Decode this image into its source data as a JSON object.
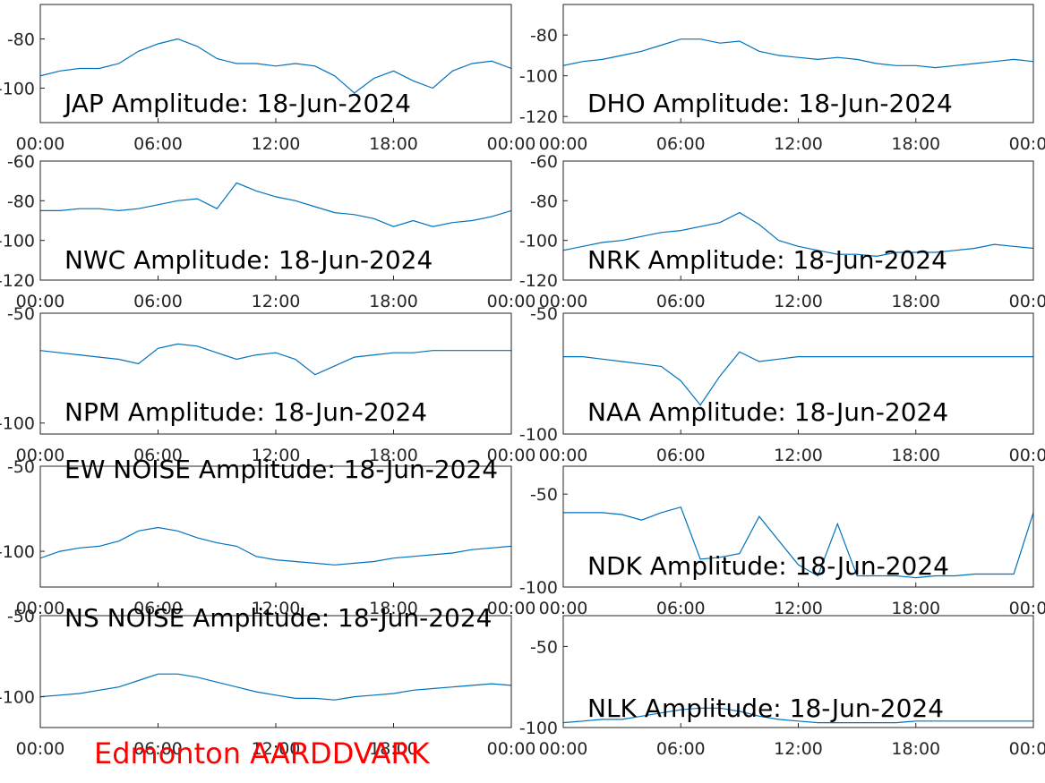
{
  "chart_data": [
    {
      "type": "line",
      "title": "JAP Amplitude: 18-Jun-2024",
      "color": "#0072bd",
      "x": [
        0,
        1,
        2,
        3,
        4,
        5,
        6,
        7,
        8,
        9,
        10,
        11,
        12,
        13,
        14,
        15,
        16,
        17,
        18,
        19,
        20,
        21,
        22,
        23,
        24
      ],
      "values": [
        -95,
        -93,
        -92,
        -92,
        -90,
        -85,
        -82,
        -80,
        -83,
        -88,
        -90,
        -90,
        -91,
        -90,
        -91,
        -95,
        -102,
        -96,
        -93,
        -97,
        -100,
        -93,
        -90,
        -89,
        -92
      ],
      "xlim": [
        0,
        24
      ],
      "xticks": [
        {
          "value": 0,
          "label": "00:00"
        },
        {
          "value": 6,
          "label": "06:00"
        },
        {
          "value": 12,
          "label": "12:00"
        },
        {
          "value": 18,
          "label": "18:00"
        },
        {
          "value": 24,
          "label": "00:00"
        }
      ],
      "ylim": [
        -114,
        -66
      ],
      "yticks": [
        -100,
        -80
      ]
    },
    {
      "type": "line",
      "title": "DHO Amplitude: 18-Jun-2024",
      "color": "#0072bd",
      "x": [
        0,
        1,
        2,
        3,
        4,
        5,
        6,
        7,
        8,
        9,
        10,
        11,
        12,
        13,
        14,
        15,
        16,
        17,
        18,
        19,
        20,
        21,
        22,
        23,
        24
      ],
      "values": [
        -95,
        -93,
        -92,
        -90,
        -88,
        -85,
        -82,
        -82,
        -84,
        -83,
        -88,
        -90,
        -91,
        -92,
        -91,
        -92,
        -94,
        -95,
        -95,
        -96,
        -95,
        -94,
        -93,
        -92,
        -93
      ],
      "xlim": [
        0,
        24
      ],
      "xticks": [
        {
          "value": 0,
          "label": "00:00"
        },
        {
          "value": 6,
          "label": "06:00"
        },
        {
          "value": 12,
          "label": "12:00"
        },
        {
          "value": 18,
          "label": "18:00"
        },
        {
          "value": 24,
          "label": "00:00"
        }
      ],
      "ylim": [
        -123,
        -65
      ],
      "yticks": [
        -120,
        -100,
        -80
      ]
    },
    {
      "type": "line",
      "title": "NWC Amplitude: 18-Jun-2024",
      "color": "#0072bd",
      "x": [
        0,
        1,
        2,
        3,
        4,
        5,
        6,
        7,
        8,
        9,
        10,
        11,
        12,
        13,
        14,
        15,
        16,
        17,
        18,
        19,
        20,
        21,
        22,
        23,
        24
      ],
      "values": [
        -85,
        -85,
        -84,
        -84,
        -85,
        -84,
        -82,
        -80,
        -79,
        -84,
        -71,
        -75,
        -78,
        -80,
        -83,
        -86,
        -87,
        -89,
        -93,
        -90,
        -93,
        -91,
        -90,
        -88,
        -85
      ],
      "xlim": [
        0,
        24
      ],
      "xticks": [
        {
          "value": 0,
          "label": "00:00"
        },
        {
          "value": 6,
          "label": "06:00"
        },
        {
          "value": 12,
          "label": "12:00"
        },
        {
          "value": 18,
          "label": "18:00"
        },
        {
          "value": 24,
          "label": "00:00"
        }
      ],
      "ylim": [
        -120,
        -60
      ],
      "yticks": [
        -120,
        -100,
        -80,
        -60
      ]
    },
    {
      "type": "line",
      "title": "NRK Amplitude: 18-Jun-2024",
      "color": "#0072bd",
      "x": [
        0,
        1,
        2,
        3,
        4,
        5,
        6,
        7,
        8,
        9,
        10,
        11,
        12,
        13,
        14,
        15,
        16,
        17,
        18,
        19,
        20,
        21,
        22,
        23,
        24
      ],
      "values": [
        -105,
        -103,
        -101,
        -100,
        -98,
        -96,
        -95,
        -93,
        -91,
        -86,
        -92,
        -100,
        -103,
        -105,
        -107,
        -107,
        -108,
        -106,
        -106,
        -106,
        -105,
        -104,
        -102,
        -103,
        -104
      ],
      "xlim": [
        0,
        24
      ],
      "xticks": [
        {
          "value": 0,
          "label": "00:00"
        },
        {
          "value": 6,
          "label": "06:00"
        },
        {
          "value": 12,
          "label": "12:00"
        },
        {
          "value": 18,
          "label": "18:00"
        },
        {
          "value": 24,
          "label": "00:00"
        }
      ],
      "ylim": [
        -120,
        -60
      ],
      "yticks": [
        -120,
        -100,
        -80,
        -60
      ]
    },
    {
      "type": "line",
      "title": "NPM Amplitude: 18-Jun-2024",
      "color": "#0072bd",
      "x": [
        0,
        1,
        2,
        3,
        4,
        5,
        6,
        7,
        8,
        9,
        10,
        11,
        12,
        13,
        14,
        15,
        16,
        17,
        18,
        19,
        20,
        21,
        22,
        23,
        24
      ],
      "values": [
        -67,
        -68,
        -69,
        -70,
        -71,
        -73,
        -66,
        -64,
        -65,
        -68,
        -71,
        -69,
        -68,
        -71,
        -78,
        -74,
        -70,
        -69,
        -68,
        -68,
        -67,
        -67,
        -67,
        -67,
        -67
      ],
      "xlim": [
        0,
        24
      ],
      "xticks": [
        {
          "value": 0,
          "label": "00:00"
        },
        {
          "value": 6,
          "label": "06:00"
        },
        {
          "value": 12,
          "label": "12:00"
        },
        {
          "value": 18,
          "label": "18:00"
        },
        {
          "value": 24,
          "label": "00:00"
        }
      ],
      "ylim": [
        -105,
        -50
      ],
      "yticks": [
        -100,
        -50
      ]
    },
    {
      "type": "line",
      "title": "NAA Amplitude: 18-Jun-2024",
      "color": "#0072bd",
      "x": [
        0,
        1,
        2,
        3,
        4,
        5,
        6,
        7,
        8,
        9,
        10,
        11,
        12,
        13,
        14,
        15,
        16,
        17,
        18,
        19,
        20,
        21,
        22,
        23,
        24
      ],
      "values": [
        -68,
        -68,
        -69,
        -70,
        -71,
        -72,
        -78,
        -88,
        -76,
        -66,
        -70,
        -69,
        -68,
        -68,
        -68,
        -68,
        -68,
        -68,
        -68,
        -68,
        -68,
        -68,
        -68,
        -68,
        -68
      ],
      "xlim": [
        0,
        24
      ],
      "xticks": [
        {
          "value": 0,
          "label": "00:00"
        },
        {
          "value": 6,
          "label": "06:00"
        },
        {
          "value": 12,
          "label": "12:00"
        },
        {
          "value": 18,
          "label": "18:00"
        },
        {
          "value": 24,
          "label": "00:00"
        }
      ],
      "ylim": [
        -100,
        -50
      ],
      "yticks": [
        -100,
        -50
      ]
    },
    {
      "type": "line",
      "title": "EW NOISE Amplitude: 18-Jun-2024",
      "color": "#0072bd",
      "x": [
        0,
        1,
        2,
        3,
        4,
        5,
        6,
        7,
        8,
        9,
        10,
        11,
        12,
        13,
        14,
        15,
        16,
        17,
        18,
        19,
        20,
        21,
        22,
        23,
        24
      ],
      "values": [
        -104,
        -100,
        -98,
        -97,
        -94,
        -88,
        -86,
        -88,
        -92,
        -95,
        -97,
        -103,
        -105,
        -106,
        -107,
        -108,
        -107,
        -106,
        -104,
        -103,
        -102,
        -101,
        -99,
        -98,
        -97
      ],
      "xlim": [
        0,
        24
      ],
      "xticks": [
        {
          "value": 0,
          "label": "00:00"
        },
        {
          "value": 6,
          "label": "06:00"
        },
        {
          "value": 12,
          "label": "12:00"
        },
        {
          "value": 18,
          "label": "18:00"
        },
        {
          "value": 24,
          "label": "00:00"
        }
      ],
      "ylim": [
        -121,
        -50
      ],
      "yticks": [
        -100,
        -50
      ]
    },
    {
      "type": "line",
      "title": "NDK Amplitude: 18-Jun-2024",
      "color": "#0072bd",
      "x": [
        0,
        1,
        2,
        3,
        4,
        5,
        6,
        7,
        8,
        9,
        10,
        11,
        12,
        13,
        14,
        15,
        16,
        17,
        18,
        19,
        20,
        21,
        22,
        23,
        24
      ],
      "values": [
        -60,
        -60,
        -60,
        -61,
        -64,
        -60,
        -57,
        -85,
        -84,
        -82,
        -62,
        -75,
        -88,
        -94,
        -66,
        -94,
        -94,
        -94,
        -95,
        -94,
        -94,
        -93,
        -93,
        -93,
        -60
      ],
      "xlim": [
        0,
        24
      ],
      "xticks": [
        {
          "value": 0,
          "label": "00:00"
        },
        {
          "value": 6,
          "label": "06:00"
        },
        {
          "value": 12,
          "label": "12:00"
        },
        {
          "value": 18,
          "label": "18:00"
        },
        {
          "value": 24,
          "label": "00:00"
        }
      ],
      "ylim": [
        -100,
        -35
      ],
      "yticks": [
        -100,
        -50
      ]
    },
    {
      "type": "line",
      "title": "NS NOISE Amplitude: 18-Jun-2024",
      "color": "#0072bd",
      "x": [
        0,
        1,
        2,
        3,
        4,
        5,
        6,
        7,
        8,
        9,
        10,
        11,
        12,
        13,
        14,
        15,
        16,
        17,
        18,
        19,
        20,
        21,
        22,
        23,
        24
      ],
      "values": [
        -100,
        -99,
        -98,
        -96,
        -94,
        -90,
        -86,
        -86,
        -88,
        -91,
        -94,
        -97,
        -99,
        -101,
        -101,
        -102,
        -100,
        -99,
        -98,
        -96,
        -95,
        -94,
        -93,
        -92,
        -93
      ],
      "xlim": [
        0,
        24
      ],
      "xticks": [
        {
          "value": 0,
          "label": "00:00"
        },
        {
          "value": 6,
          "label": "06:00"
        },
        {
          "value": 12,
          "label": "12:00"
        },
        {
          "value": 18,
          "label": "18:00"
        },
        {
          "value": 24,
          "label": "00:00"
        }
      ],
      "ylim": [
        -119,
        -50
      ],
      "yticks": [
        -100,
        -50
      ]
    },
    {
      "type": "line",
      "title": "NLK Amplitude: 18-Jun-2024",
      "color": "#0072bd",
      "x": [
        0,
        1,
        2,
        3,
        4,
        5,
        6,
        7,
        8,
        9,
        10,
        11,
        12,
        13,
        14,
        15,
        16,
        17,
        18,
        19,
        20,
        21,
        22,
        23,
        24
      ],
      "values": [
        -97,
        -96,
        -95,
        -95,
        -93,
        -91,
        -89,
        -88,
        -88,
        -90,
        -93,
        -95,
        -96,
        -97,
        -97,
        -97,
        -97,
        -97,
        -96,
        -96,
        -96,
        -96,
        -96,
        -96,
        -96
      ],
      "xlim": [
        0,
        24
      ],
      "xticks": [
        {
          "value": 0,
          "label": "00:00"
        },
        {
          "value": 6,
          "label": "06:00"
        },
        {
          "value": 12,
          "label": "12:00"
        },
        {
          "value": 18,
          "label": "18:00"
        },
        {
          "value": 24,
          "label": "00:00"
        }
      ],
      "ylim": [
        -100,
        -31
      ],
      "yticks": [
        -100,
        -50
      ]
    }
  ],
  "footer": "Edmonton AARDDVARK"
}
